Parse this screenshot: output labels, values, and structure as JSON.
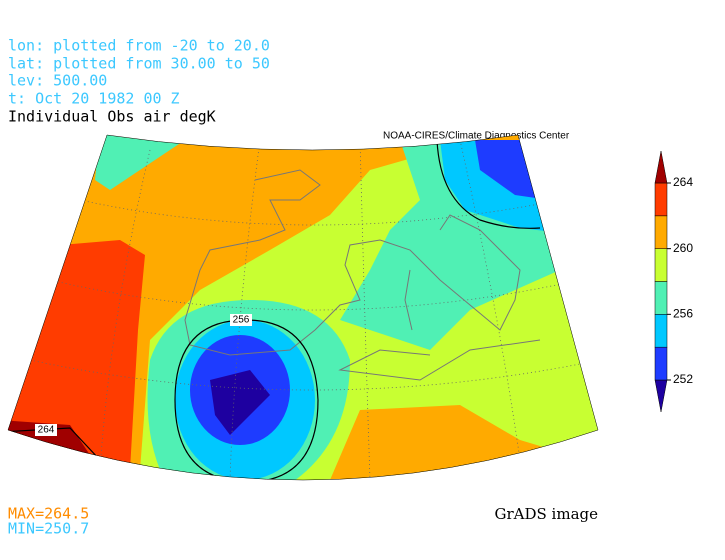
{
  "header": {
    "lines": [
      "lon: plotted from -20 to 20.0",
      "lat: plotted from 30.00 to 50",
      "lev: 500.00",
      "t: Oct 20 1982 00 Z"
    ],
    "title": "Individual Obs air degK",
    "credit": "NOAA-CIRES/Climate Diagnostics Center"
  },
  "map": {
    "contour_labels": [
      "256",
      "264"
    ]
  },
  "colorbar": {
    "levels": [
      252,
      254,
      256,
      258,
      260,
      262,
      264
    ],
    "colors": [
      "#1e00a0",
      "#1e3cff",
      "#00c8ff",
      "#50f0b4",
      "#c8ff32",
      "#ffaa00",
      "#ff3c00",
      "#a00000"
    ],
    "ticks": [
      252,
      256,
      260,
      264
    ]
  },
  "footer": {
    "max": "MAX=264.5",
    "min": "MIN=250.7",
    "brand": "GrADS image"
  }
}
